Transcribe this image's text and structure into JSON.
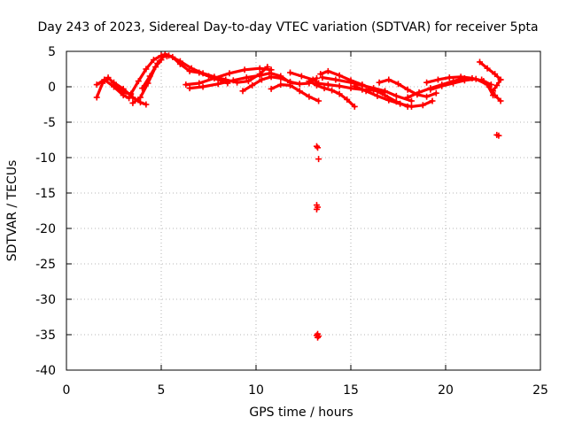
{
  "chart_data": {
    "type": "scatter",
    "title": "Day 243 of 2023, Sidereal Day-to-day VTEC variation (SDTVAR) for receiver 5pta",
    "xlabel": "GPS time / hours",
    "ylabel": "SDTVAR / TECUs",
    "xlim": [
      0,
      25
    ],
    "ylim": [
      -40,
      5
    ],
    "xticks": [
      0,
      5,
      10,
      15,
      20,
      25
    ],
    "yticks": [
      5,
      0,
      -5,
      -10,
      -15,
      -20,
      -25,
      -30,
      -35,
      -40
    ],
    "xtick_labels": [
      "0",
      "5",
      "10",
      "15",
      "20",
      "25"
    ],
    "ytick_labels": [
      "5",
      "0",
      "-5",
      "-10",
      "-15",
      "-20",
      "-25",
      "-30",
      "-35",
      "-40"
    ],
    "grid": true,
    "marker": "plus",
    "color": "#ff0000",
    "series": [
      {
        "name": "arc-01",
        "x": [
          1.6,
          1.9,
          2.2,
          2.6,
          3.0,
          3.4,
          3.8,
          4.2,
          4.6,
          5.0,
          5.3
        ],
        "y": [
          -1.5,
          0.5,
          1.3,
          0.2,
          -0.8,
          -1.0,
          0.8,
          2.5,
          3.8,
          4.4,
          4.3
        ]
      },
      {
        "name": "arc-02",
        "x": [
          1.6,
          2.0,
          2.5,
          3.0,
          3.3
        ],
        "y": [
          0.3,
          1.0,
          0.0,
          -1.2,
          -1.6
        ]
      },
      {
        "name": "arc-03",
        "x": [
          2.5,
          3.0,
          3.5,
          3.9,
          4.2
        ],
        "y": [
          0.6,
          -0.3,
          -1.5,
          -2.2,
          -2.5
        ]
      },
      {
        "name": "arc-04",
        "x": [
          3.5,
          3.9,
          4.3,
          4.7,
          5.0
        ],
        "y": [
          -2.3,
          -1.5,
          0.5,
          2.8,
          3.8
        ]
      },
      {
        "name": "arc-05",
        "x": [
          4.0,
          4.4,
          4.8,
          5.2
        ],
        "y": [
          -0.2,
          1.5,
          3.3,
          4.5
        ]
      },
      {
        "name": "arc-06",
        "x": [
          5.2,
          5.6,
          6.0,
          6.5,
          7.0,
          7.5,
          8.0,
          8.5
        ],
        "y": [
          4.6,
          4.2,
          3.2,
          2.2,
          2.0,
          1.5,
          1.0,
          0.5
        ]
      },
      {
        "name": "arc-07",
        "x": [
          5.4,
          6.0,
          6.6,
          7.2,
          7.8,
          8.4,
          9.0,
          9.6,
          10.2,
          10.6
        ],
        "y": [
          4.4,
          3.6,
          2.6,
          1.9,
          1.4,
          1.0,
          0.6,
          0.8,
          1.8,
          2.8
        ]
      },
      {
        "name": "arc-08",
        "x": [
          6.3,
          7.0,
          7.8,
          8.6,
          9.4,
          10.2,
          10.8
        ],
        "y": [
          0.3,
          0.5,
          1.2,
          1.9,
          2.4,
          2.6,
          2.4
        ]
      },
      {
        "name": "arc-09",
        "x": [
          6.5,
          7.2,
          8.0,
          8.8,
          9.5,
          10.2,
          10.7
        ],
        "y": [
          -0.2,
          0.0,
          0.4,
          0.9,
          1.3,
          1.6,
          1.9
        ]
      },
      {
        "name": "arc-10",
        "x": [
          9.3,
          9.8,
          10.3,
          10.8,
          11.3,
          11.8,
          12.3
        ],
        "y": [
          -0.6,
          0.2,
          1.0,
          1.4,
          1.2,
          0.7,
          0.4
        ]
      },
      {
        "name": "arc-11",
        "x": [
          10.8,
          11.3,
          11.8,
          12.3,
          12.8,
          13.2
        ],
        "y": [
          1.9,
          1.5,
          0.6,
          0.4,
          0.5,
          1.2
        ]
      },
      {
        "name": "arc-12",
        "x": [
          10.8,
          11.3,
          11.8,
          12.3,
          12.8,
          13.3
        ],
        "y": [
          -0.3,
          0.3,
          0.2,
          -0.6,
          -1.4,
          -2.0
        ]
      },
      {
        "name": "arc-13",
        "x": [
          11.8,
          12.4,
          13.0,
          13.3
        ],
        "y": [
          2.0,
          1.5,
          1.0,
          0.5
        ]
      },
      {
        "name": "arc-14",
        "x": [
          12.8,
          13.2,
          13.6,
          14.0,
          14.4,
          14.8,
          15.2
        ],
        "y": [
          0.8,
          0.2,
          -0.2,
          -0.5,
          -1.0,
          -1.8,
          -2.8
        ]
      },
      {
        "name": "arc-15",
        "x": [
          13.2,
          13.8,
          14.4,
          15.0,
          15.6,
          16.2,
          16.8
        ],
        "y": [
          0.5,
          0.3,
          0.1,
          -0.2,
          -0.4,
          -0.5,
          -0.7
        ]
      },
      {
        "name": "arc-16",
        "x": [
          13.4,
          13.8,
          14.4,
          15.0,
          15.6,
          16.2,
          16.8,
          17.4,
          18.0
        ],
        "y": [
          1.8,
          2.2,
          1.6,
          0.9,
          0.3,
          -0.4,
          -1.2,
          -2.1,
          -2.8
        ]
      },
      {
        "name": "arc-17",
        "x": [
          13.5,
          14.2,
          15.0,
          15.6,
          16.2,
          16.8,
          17.4,
          18.2
        ],
        "y": [
          1.3,
          1.0,
          0.6,
          0.2,
          -0.2,
          -0.6,
          -1.3,
          -2.0
        ]
      },
      {
        "name": "arc-18",
        "x": [
          15.2,
          15.8,
          16.4,
          17.0,
          17.6,
          18.2,
          18.8,
          19.3
        ],
        "y": [
          0.1,
          -0.6,
          -1.3,
          -1.9,
          -2.4,
          -2.8,
          -2.6,
          -2.0
        ]
      },
      {
        "name": "arc-19",
        "x": [
          16.5,
          17.0,
          17.5,
          18.0,
          18.5,
          19.0,
          19.5
        ],
        "y": [
          0.6,
          1.0,
          0.4,
          -0.4,
          -1.1,
          -1.4,
          -0.9
        ]
      },
      {
        "name": "arc-20",
        "x": [
          18.0,
          18.6,
          19.2,
          19.8,
          20.4,
          21.0
        ],
        "y": [
          -1.5,
          -0.8,
          -0.2,
          0.3,
          0.8,
          1.2
        ]
      },
      {
        "name": "arc-21",
        "x": [
          19.0,
          19.6,
          20.2,
          20.8,
          21.4,
          22.0,
          22.4
        ],
        "y": [
          0.6,
          1.0,
          1.3,
          1.4,
          1.2,
          0.8,
          0.3
        ]
      },
      {
        "name": "arc-22",
        "x": [
          19.2,
          19.8,
          20.4,
          21.0,
          21.6,
          22.2,
          22.5
        ],
        "y": [
          -0.4,
          0.1,
          0.5,
          0.9,
          1.1,
          0.3,
          -1.2
        ]
      },
      {
        "name": "arc-23",
        "x": [
          21.8,
          22.2,
          22.6,
          22.9
        ],
        "y": [
          3.5,
          2.6,
          1.8,
          1.0
        ]
      },
      {
        "name": "arc-24",
        "x": [
          21.9,
          22.3,
          22.6,
          22.9
        ],
        "y": [
          1.0,
          0.0,
          -1.2,
          -2.0
        ]
      },
      {
        "name": "arc-25",
        "x": [
          22.5,
          22.7,
          22.9
        ],
        "y": [
          -0.6,
          0.2,
          1.0
        ]
      },
      {
        "name": "arc-26",
        "x": [
          22.7,
          22.8
        ],
        "y": [
          -6.8,
          -6.9
        ]
      }
    ],
    "outliers": {
      "x": [
        13.2,
        13.25,
        13.3,
        13.2,
        13.25,
        13.2,
        13.25,
        13.2,
        13.25,
        13.3
      ],
      "y": [
        -8.4,
        -8.6,
        -10.2,
        -16.7,
        -17.0,
        -17.3,
        -34.9,
        -35.1,
        -35.4,
        -35.2
      ]
    }
  }
}
